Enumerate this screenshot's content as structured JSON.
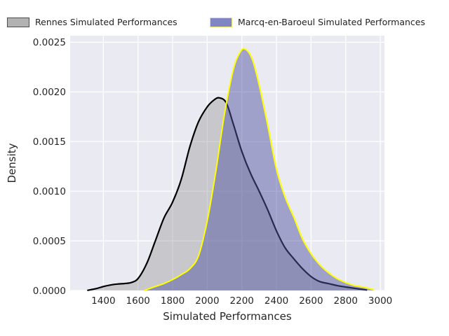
{
  "legend": {
    "items": [
      {
        "label": "Rennes Simulated Performances",
        "swatch_fill": "#b2b2b2",
        "swatch_border": "#4d4d4d"
      },
      {
        "label": "Marcq-en-Baroeul Simulated Performances",
        "swatch_fill": "#8185c3",
        "swatch_border": "#e8e878"
      }
    ]
  },
  "chart_data": {
    "type": "area",
    "subtype": "kde-density",
    "title": "",
    "xlabel": "Simulated Performances",
    "ylabel": "Density",
    "xlim": [
      1208,
      3024
    ],
    "ylim": [
      0,
      0.002566
    ],
    "x_ticks": [
      1400,
      1600,
      1800,
      2000,
      2200,
      2400,
      2600,
      2800,
      3000
    ],
    "y_ticks": [
      0.0,
      0.0005,
      0.001,
      0.0015,
      0.002,
      0.0025
    ],
    "y_tick_labels": [
      "0.0000",
      "0.0005",
      "0.0010",
      "0.0015",
      "0.0020",
      "0.0025"
    ],
    "grid": true,
    "legend_position": "top",
    "plot_bg": "#eaeaf2",
    "grid_color": "#ffffff",
    "tick_color": "#262626",
    "series": [
      {
        "name": "Rennes Simulated Performances",
        "line_color": "#000000",
        "line_width": 2.2,
        "fill_color": "rgba(127,127,127,0.33)",
        "peak": {
          "x": 2065,
          "density": 0.00195
        },
        "points": [
          [
            1310,
            2e-06
          ],
          [
            1360,
            2e-05
          ],
          [
            1400,
            4e-05
          ],
          [
            1440,
            5.5e-05
          ],
          [
            1480,
            6.5e-05
          ],
          [
            1520,
            7e-05
          ],
          [
            1560,
            8e-05
          ],
          [
            1600,
            0.00012
          ],
          [
            1650,
            0.00027
          ],
          [
            1700,
            0.0005
          ],
          [
            1750,
            0.00073
          ],
          [
            1800,
            0.00089
          ],
          [
            1850,
            0.00112
          ],
          [
            1900,
            0.00145
          ],
          [
            1950,
            0.0017
          ],
          [
            2000,
            0.00185
          ],
          [
            2040,
            0.00192
          ],
          [
            2070,
            0.00194
          ],
          [
            2110,
            0.00189
          ],
          [
            2150,
            0.00168
          ],
          [
            2200,
            0.0014
          ],
          [
            2250,
            0.00118
          ],
          [
            2300,
            0.001
          ],
          [
            2350,
            0.00081
          ],
          [
            2400,
            0.0006
          ],
          [
            2450,
            0.00043
          ],
          [
            2500,
            0.00032
          ],
          [
            2550,
            0.00022
          ],
          [
            2600,
            0.00014
          ],
          [
            2650,
            9e-05
          ],
          [
            2700,
            7e-05
          ],
          [
            2750,
            5e-05
          ],
          [
            2800,
            3.5e-05
          ],
          [
            2860,
            2e-05
          ],
          [
            2920,
            5e-06
          ]
        ]
      },
      {
        "name": "Marcq-en-Baroeul Simulated Performances",
        "line_color": "#ffff00",
        "line_width": 2.0,
        "fill_color": "rgba(82,86,162,0.49)",
        "peak": {
          "x": 2215,
          "density": 0.00243
        },
        "points": [
          [
            1640,
            3e-06
          ],
          [
            1700,
            4e-05
          ],
          [
            1750,
            7e-05
          ],
          [
            1800,
            0.00011
          ],
          [
            1850,
            0.00016
          ],
          [
            1900,
            0.00022
          ],
          [
            1950,
            0.00035
          ],
          [
            2000,
            0.0007
          ],
          [
            2050,
            0.0012
          ],
          [
            2100,
            0.00178
          ],
          [
            2150,
            0.00222
          ],
          [
            2190,
            0.0024
          ],
          [
            2220,
            0.00243
          ],
          [
            2260,
            0.00233
          ],
          [
            2300,
            0.00207
          ],
          [
            2350,
            0.00166
          ],
          [
            2400,
            0.00122
          ],
          [
            2450,
            0.00094
          ],
          [
            2500,
            0.00074
          ],
          [
            2550,
            0.00052
          ],
          [
            2600,
            0.00037
          ],
          [
            2650,
            0.00026
          ],
          [
            2700,
            0.00018
          ],
          [
            2750,
            0.00012
          ],
          [
            2800,
            8e-05
          ],
          [
            2850,
            5e-05
          ],
          [
            2900,
            3.5e-05
          ],
          [
            2960,
            1e-05
          ]
        ]
      }
    ]
  }
}
